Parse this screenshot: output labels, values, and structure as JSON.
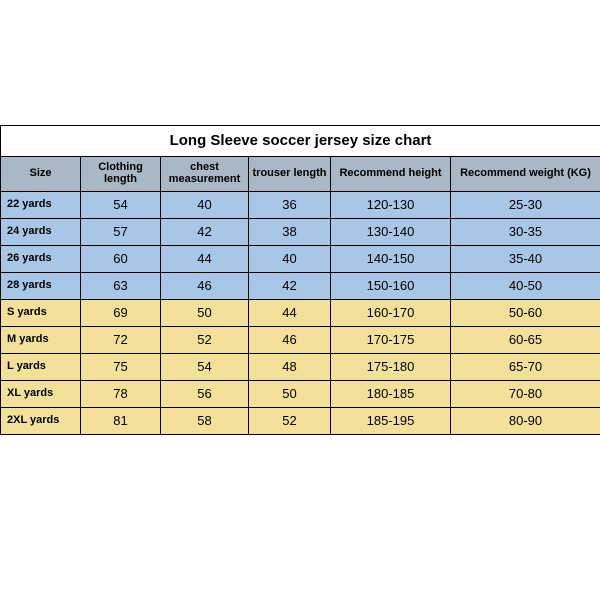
{
  "title": "Long Sleeve soccer jersey size chart",
  "columns": [
    {
      "key": "size",
      "label": "Size",
      "class": "col-size",
      "header_class": ""
    },
    {
      "key": "clothing_length",
      "label": "Clothing length",
      "class": "col-cloth",
      "header_class": ""
    },
    {
      "key": "chest",
      "label": "chest measurement",
      "class": "col-chest",
      "header_class": "head-small"
    },
    {
      "key": "trouser",
      "label": "trouser length",
      "class": "col-trouser",
      "header_class": "head-small"
    },
    {
      "key": "height",
      "label": "Recommend height",
      "class": "col-height",
      "header_class": ""
    },
    {
      "key": "weight",
      "label": "Recommend weight (KG)",
      "class": "col-weight",
      "header_class": ""
    }
  ],
  "rows": [
    {
      "group": "kids",
      "size": "22 yards",
      "clothing_length": "54",
      "chest": "40",
      "trouser": "36",
      "height": "120-130",
      "weight": "25-30"
    },
    {
      "group": "kids",
      "size": "24 yards",
      "clothing_length": "57",
      "chest": "42",
      "trouser": "38",
      "height": "130-140",
      "weight": "30-35"
    },
    {
      "group": "kids",
      "size": "26 yards",
      "clothing_length": "60",
      "chest": "44",
      "trouser": "40",
      "height": "140-150",
      "weight": "35-40"
    },
    {
      "group": "kids",
      "size": "28 yards",
      "clothing_length": "63",
      "chest": "46",
      "trouser": "42",
      "height": "150-160",
      "weight": "40-50"
    },
    {
      "group": "adult",
      "size": "S yards",
      "clothing_length": "69",
      "chest": "50",
      "trouser": "44",
      "height": "160-170",
      "weight": "50-60"
    },
    {
      "group": "adult",
      "size": "M yards",
      "clothing_length": "72",
      "chest": "52",
      "trouser": "46",
      "height": "170-175",
      "weight": "60-65"
    },
    {
      "group": "adult",
      "size": "L yards",
      "clothing_length": "75",
      "chest": "54",
      "trouser": "48",
      "height": "175-180",
      "weight": "65-70"
    },
    {
      "group": "adult",
      "size": "XL yards",
      "clothing_length": "78",
      "chest": "56",
      "trouser": "50",
      "height": "180-185",
      "weight": "70-80"
    },
    {
      "group": "adult",
      "size": "2XL yards",
      "clothing_length": "81",
      "chest": "58",
      "trouser": "52",
      "height": "185-195",
      "weight": "80-90"
    }
  ],
  "styling": {
    "header_bg": "#a9b8c4",
    "kids_bg": "#a8c6e6",
    "adult_bg": "#f3e19a",
    "border_color": "#000000",
    "title_fontsize": 15,
    "header_fontsize": 11,
    "cell_fontsize": 13
  }
}
